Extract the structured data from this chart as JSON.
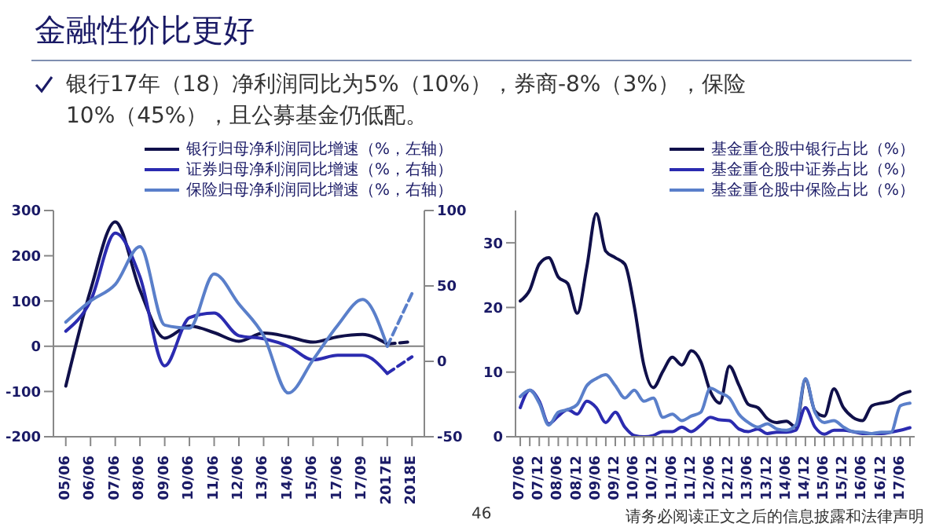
{
  "chart_data": [
    {
      "type": "line",
      "title": "金融性价比更好",
      "annotations": [
        "银行17年（18）净利润同比为5%（10%），券商-8%（3%），保险10%（45%），且公募基金仍低配。"
      ],
      "categories": [
        "05/06",
        "06/06",
        "07/06",
        "08/06",
        "09/06",
        "10/06",
        "11/06",
        "12/06",
        "13/06",
        "14/06",
        "15/06",
        "17/06",
        "17/09",
        "2017E",
        "2018E"
      ],
      "ylim": [
        -200,
        300
      ],
      "yticks": [
        -200,
        -100,
        0,
        100,
        200,
        300
      ],
      "y2lim": [
        -50,
        100
      ],
      "y2ticks": [
        -50,
        0,
        50,
        100
      ],
      "legend": "top",
      "marker": "none",
      "grid": false,
      "ref_lines": [
        {
          "axis": "y",
          "value": 0,
          "color": "#808080"
        }
      ],
      "series": [
        {
          "name": "银行归母净利润同比增速（%，左轴）",
          "color": "#10104a",
          "line_style": "solid",
          "values": [
            -88,
            124,
            275,
            124,
            18,
            45,
            30,
            11,
            29,
            21,
            9,
            21,
            26,
            5,
            null
          ]
        },
        {
          "name": "证券归母净利润同比增速（%，右轴）",
          "color": "#2b2bb0",
          "axis": "y2",
          "line_style": "solid",
          "values": [
            20,
            40,
            85,
            56,
            -3,
            29,
            32,
            17,
            15,
            10,
            1,
            4,
            4,
            -8,
            null
          ]
        },
        {
          "name": "保险归母净利润同比增速（%，右轴）",
          "color": "#5a7fca",
          "axis": "y2",
          "line_style": "solid",
          "values": [
            26,
            40,
            51,
            76,
            24,
            22,
            58,
            38,
            17,
            -21,
            1,
            24,
            41,
            10,
            null
          ]
        },
        {
          "color": "#10104a",
          "line_style": "dashed",
          "values": [
            null,
            null,
            null,
            null,
            null,
            null,
            null,
            null,
            null,
            null,
            null,
            null,
            null,
            5,
            10
          ]
        },
        {
          "color": "#2b2bb0",
          "axis": "y2",
          "line_style": "dashed",
          "values": [
            null,
            null,
            null,
            null,
            null,
            null,
            null,
            null,
            null,
            null,
            null,
            null,
            null,
            -8,
            3
          ]
        },
        {
          "color": "#5a7fca",
          "axis": "y2",
          "line_style": "dashed",
          "values": [
            null,
            null,
            null,
            null,
            null,
            null,
            null,
            null,
            null,
            null,
            null,
            null,
            null,
            10,
            45
          ]
        }
      ]
    },
    {
      "type": "line",
      "annotations": [
        "46",
        "请务必阅读正文之后的信息披露和法律声明"
      ],
      "categories": [
        "07/06",
        null,
        "07/12",
        null,
        "08/06",
        null,
        "08/12",
        null,
        "09/06",
        null,
        "09/12",
        null,
        "10/06",
        null,
        "10/12",
        null,
        "11/06",
        null,
        "11/12",
        null,
        "12/06",
        null,
        "12/12",
        null,
        "13/06",
        null,
        "13/12",
        null,
        "14/06",
        null,
        "14/12",
        null,
        "15/06",
        null,
        "15/12",
        null,
        "16/06",
        null,
        "16/12",
        null,
        "17/06",
        null
      ],
      "ylim": [
        0,
        35
      ],
      "yticks": [
        0,
        10,
        20,
        30
      ],
      "legend": "top",
      "marker": "none",
      "grid": false,
      "series": [
        {
          "name": "基金重仓股中银行占比（%）",
          "color": "#10104a",
          "line_style": "solid",
          "values": [
            21,
            22.7,
            26.7,
            27.7,
            24.7,
            23.7,
            19.1,
            26.2,
            34.5,
            28.7,
            27.7,
            26.7,
            20.1,
            11.1,
            7.6,
            10.1,
            12.3,
            11.1,
            13.3,
            11.6,
            7,
            5.2,
            10.9,
            8,
            5,
            4.5,
            2.8,
            2.2,
            2.4,
            1.5,
            8.9,
            4,
            3.2,
            7.4,
            4.5,
            3,
            2.5,
            4.8,
            5.2,
            5.5,
            6.5,
            7
          ]
        },
        {
          "name": "基金重仓股中证券占比（%）",
          "color": "#2b2bb0",
          "line_style": "solid",
          "values": [
            4.5,
            7.2,
            5.5,
            2,
            3.2,
            4.2,
            3.5,
            5.5,
            4.5,
            2.2,
            3.8,
            1.5,
            0.2,
            0,
            0.2,
            0.8,
            0.8,
            1.5,
            0.8,
            1.8,
            3,
            2.6,
            2.5,
            1.2,
            0.8,
            1.2,
            0.5,
            0.7,
            0.7,
            1,
            4.5,
            1.5,
            0.4,
            1,
            1,
            0.8,
            0.5,
            0.5,
            0.5,
            0.7,
            1,
            1.4
          ]
        },
        {
          "name": "基金重仓股中保险占比（%）",
          "color": "#5a7fca",
          "line_style": "solid",
          "values": [
            6.2,
            7.2,
            5.2,
            1.8,
            3.8,
            4.2,
            5,
            7.9,
            9,
            9.6,
            7.9,
            6,
            7.2,
            5.5,
            6,
            3,
            3.5,
            2.5,
            3.2,
            3.8,
            7.5,
            6.8,
            6,
            3.5,
            2.2,
            1.5,
            2,
            1.2,
            1,
            1.8,
            9,
            3.8,
            2.2,
            2.5,
            1.5,
            0.8,
            0.7,
            0.5,
            0.7,
            0.7,
            4.8,
            5.2
          ]
        }
      ]
    }
  ]
}
